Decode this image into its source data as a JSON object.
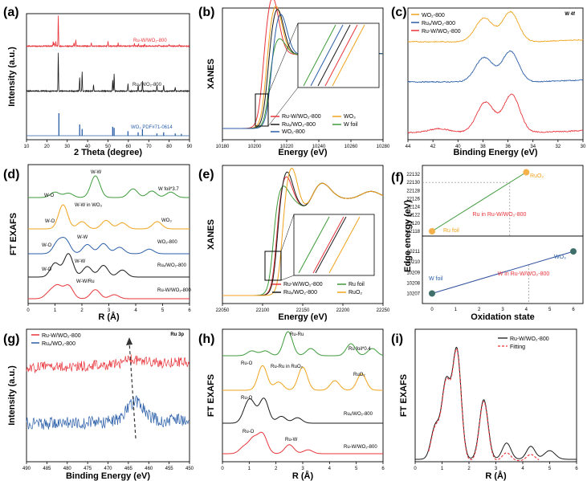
{
  "colors": {
    "red": "#e8343a",
    "black": "#1a1a1a",
    "blue": "#2a5ea8",
    "green": "#3d9a3a",
    "orange": "#f0a31c",
    "lightorange": "#f4b24a",
    "darkblue": "#2f4f9f",
    "teal": "#3f6f6a",
    "tickblue": "#2c5fb0",
    "ann_red": "#e8343a"
  },
  "chart_data": [
    {
      "id": "a",
      "panel_label": "(a)",
      "type": "line",
      "title": "",
      "xlabel": "2 Theta (degree)",
      "ylabel": "Intensity (a.u.)",
      "xlim": [
        10,
        90
      ],
      "xticks": [
        "10",
        "20",
        "30",
        "40",
        "50",
        "60",
        "70",
        "80",
        "90"
      ],
      "series": [
        {
          "name": "Ru-W/WO₂-800",
          "color": "red",
          "peaks": [
            [
              23.1,
              0.15
            ],
            [
              23.6,
              0.1
            ],
            [
              24.4,
              0.15
            ],
            [
              25.6,
              1.0
            ],
            [
              33.3,
              0.12
            ],
            [
              34.2,
              0.2
            ],
            [
              41.8,
              0.1
            ],
            [
              50.0,
              0.15
            ],
            [
              55.0,
              0.1
            ],
            [
              63.0,
              0.08
            ],
            [
              65.0,
              0.07
            ],
            [
              68.0,
              0.06
            ],
            [
              75.0,
              0.05
            ],
            [
              80.0,
              0.05
            ],
            [
              85.0,
              0.04
            ]
          ]
        },
        {
          "name": "Ruₓ/WO₂-800",
          "color": "black",
          "peaks": [
            [
              25.6,
              1.0
            ],
            [
              36.1,
              0.35
            ],
            [
              37.3,
              0.5
            ],
            [
              42.9,
              0.15
            ],
            [
              52.3,
              0.3
            ],
            [
              53.0,
              0.45
            ],
            [
              59.8,
              0.2
            ],
            [
              64.8,
              0.15
            ],
            [
              66.9,
              0.25
            ],
            [
              74.0,
              0.15
            ],
            [
              77.3,
              0.15
            ],
            [
              83.0,
              0.1
            ]
          ]
        },
        {
          "name": "WO₂ PDF#71-0614",
          "color": "blue",
          "sticks": [
            [
              25.9,
              1.0
            ],
            [
              36.1,
              0.5
            ],
            [
              37.3,
              0.3
            ],
            [
              52.3,
              0.4
            ],
            [
              53.0,
              0.35
            ],
            [
              59.8,
              0.2
            ],
            [
              64.8,
              0.15
            ],
            [
              66.9,
              0.3
            ],
            [
              74.0,
              0.1
            ],
            [
              77.3,
              0.15
            ],
            [
              83.0,
              0.1
            ],
            [
              86.0,
              0.08
            ]
          ]
        }
      ],
      "labels": {
        "s1": "Ru-W/WO₂-800",
        "s2": "Ruₓ/WO₂-800",
        "s3": "WO₂ PDF#71-0614"
      }
    },
    {
      "id": "b",
      "panel_label": "(b)",
      "type": "line",
      "xlabel": "Energy (eV)",
      "ylabel": "XANES",
      "xlim": [
        10180,
        10280
      ],
      "xticks": [
        "10180",
        "10200",
        "10220",
        "10240",
        "10260",
        "10280"
      ],
      "legend": [
        "Ru-W/WO₂-800",
        "WO₃",
        "Ruₓ/WO₂-800",
        "W foil",
        "WO₂-800"
      ],
      "edge_energy": [
        10205,
        10207,
        10208,
        10209,
        10210
      ],
      "white_line_height": [
        1.35,
        1.3,
        1.28,
        1.1,
        1.25
      ]
    },
    {
      "id": "c",
      "panel_label": "(c)",
      "type": "line",
      "title": "W 4f",
      "xlabel": "Binding Energy (eV)",
      "ylabel": "",
      "xlim": [
        44,
        30
      ],
      "xticks": [
        "44",
        "42",
        "40",
        "38",
        "36",
        "34",
        "32",
        "30"
      ],
      "series": [
        {
          "name": "WO₂-800",
          "color": "orange",
          "peak_positions": [
            37.9,
            35.8
          ]
        },
        {
          "name": "Ruₓ/WO₂-800",
          "color": "blue",
          "peak_positions": [
            37.9,
            35.8
          ]
        },
        {
          "name": "Ru-W/WO₂-800",
          "color": "red",
          "peak_positions": [
            37.8,
            35.7
          ]
        }
      ]
    },
    {
      "id": "d",
      "panel_label": "(d)",
      "type": "line",
      "xlabel": "R (Å)",
      "ylabel": "FT EXAFS",
      "xlim": [
        0,
        6
      ],
      "xticks": [
        "0",
        "1",
        "2",
        "3",
        "4",
        "5",
        "6"
      ],
      "series": [
        {
          "name": "W foil*3.7",
          "color": "green",
          "main_peak": 2.5
        },
        {
          "name": "WO₃",
          "color": "orange",
          "main_peak": 1.3
        },
        {
          "name": "WO₂-800",
          "color": "blue",
          "main_peak": 1.3
        },
        {
          "name": "Ruₓ/WO₂-800",
          "color": "black",
          "main_peak": 1.5
        },
        {
          "name": "Ru-W/WO₂-800",
          "color": "red",
          "main_peak": 1.5
        }
      ],
      "annotations": [
        "W-W",
        "W-O",
        "W-W in WO₃",
        "W-O",
        "W-W",
        "W-O",
        "W-W",
        "W-O",
        "W-W/Ru"
      ]
    },
    {
      "id": "e",
      "panel_label": "(e)",
      "type": "line",
      "xlabel": "Energy (eV)",
      "ylabel": "XANES",
      "xlim": [
        22050,
        22250
      ],
      "xticks": [
        "22050",
        "22100",
        "22150",
        "22200",
        "22250"
      ],
      "legend": [
        "Ru-W/WO₂-800",
        "Ru foil",
        "Ruₓ/WO₂-800",
        "RuO₂"
      ]
    },
    {
      "id": "f",
      "panel_label": "(f)",
      "type": "scatter",
      "xlabel": "Oxidation state",
      "ylabel": "Edge energy (eV)",
      "xlim": [
        0,
        6
      ],
      "xticks": [
        "0",
        "1",
        "2",
        "3",
        "4",
        "5",
        "6"
      ],
      "top": {
        "ylim": [
          22118,
          22133
        ],
        "yticks": [
          "22118",
          "22120",
          "22122",
          "22124",
          "22126",
          "22128",
          "22130",
          "22132"
        ],
        "points": [
          {
            "name": "Ru foil",
            "x": 0,
            "y": 22118
          },
          {
            "name": "RuO₂",
            "x": 4,
            "y": 22132.5
          }
        ],
        "interp": {
          "name": "Ru in Ru-W/WO₂-800",
          "x": 3.3,
          "y": 22130
        }
      },
      "bottom": {
        "ylim": [
          10206.5,
          10212
        ],
        "yticks": [
          "10207",
          "10208",
          "10209",
          "10210",
          "10211"
        ],
        "points": [
          {
            "name": "W foil",
            "x": 0,
            "y": 10207
          },
          {
            "name": "WO₃",
            "x": 6,
            "y": 10211
          }
        ],
        "interp": {
          "name": "W in Ru-W/WO₂-800",
          "x": 4.1,
          "y": 10209.7
        }
      }
    },
    {
      "id": "g",
      "panel_label": "(g)",
      "type": "line",
      "title": "Ru 3p",
      "xlabel": "Binding Energy (eV)",
      "ylabel": "Intensity (a.u.)",
      "xlim": [
        490,
        450
      ],
      "xticks": [
        "490",
        "485",
        "480",
        "475",
        "470",
        "465",
        "460",
        "455",
        "450"
      ],
      "legend": [
        "Ru-W/WO₂-800",
        "Ruₓ/WO₂-800"
      ],
      "peak_shift_from": 464.0,
      "peak_shift_to": 463.2
    },
    {
      "id": "h",
      "panel_label": "(h)",
      "type": "line",
      "xlabel": "R (Å)",
      "ylabel": "FT EXAFS",
      "xlim": [
        0,
        6
      ],
      "xticks": [
        "0",
        "1",
        "2",
        "3",
        "4",
        "5",
        "6"
      ],
      "series": [
        {
          "name": "Ru foil*0.4",
          "color": "green"
        },
        {
          "name": "RuO₂",
          "color": "orange"
        },
        {
          "name": "Ruₓ/WO₂-800",
          "color": "black"
        },
        {
          "name": "Ru-W/WO₂-800",
          "color": "red"
        }
      ],
      "annotations": [
        "Ru-Ru",
        "Ru-O",
        "Ru-Ru in RuO₂",
        "Ru-O",
        "Ru-O",
        "Ru-W"
      ]
    },
    {
      "id": "i",
      "panel_label": "(i)",
      "type": "line",
      "xlabel": "R (Å)",
      "ylabel": "FT EXAFS",
      "xlim": [
        0,
        6
      ],
      "xticks": [
        "0",
        "1",
        "2",
        "3",
        "4",
        "5",
        "6"
      ],
      "legend": [
        "Ru-W/WO₂-800",
        "Fitting"
      ],
      "peaks": [
        [
          0.75,
          0.3
        ],
        [
          1.15,
          0.7
        ],
        [
          1.55,
          1.0
        ],
        [
          2.55,
          0.55
        ],
        [
          3.4,
          0.15
        ],
        [
          4.3,
          0.12
        ]
      ]
    }
  ]
}
